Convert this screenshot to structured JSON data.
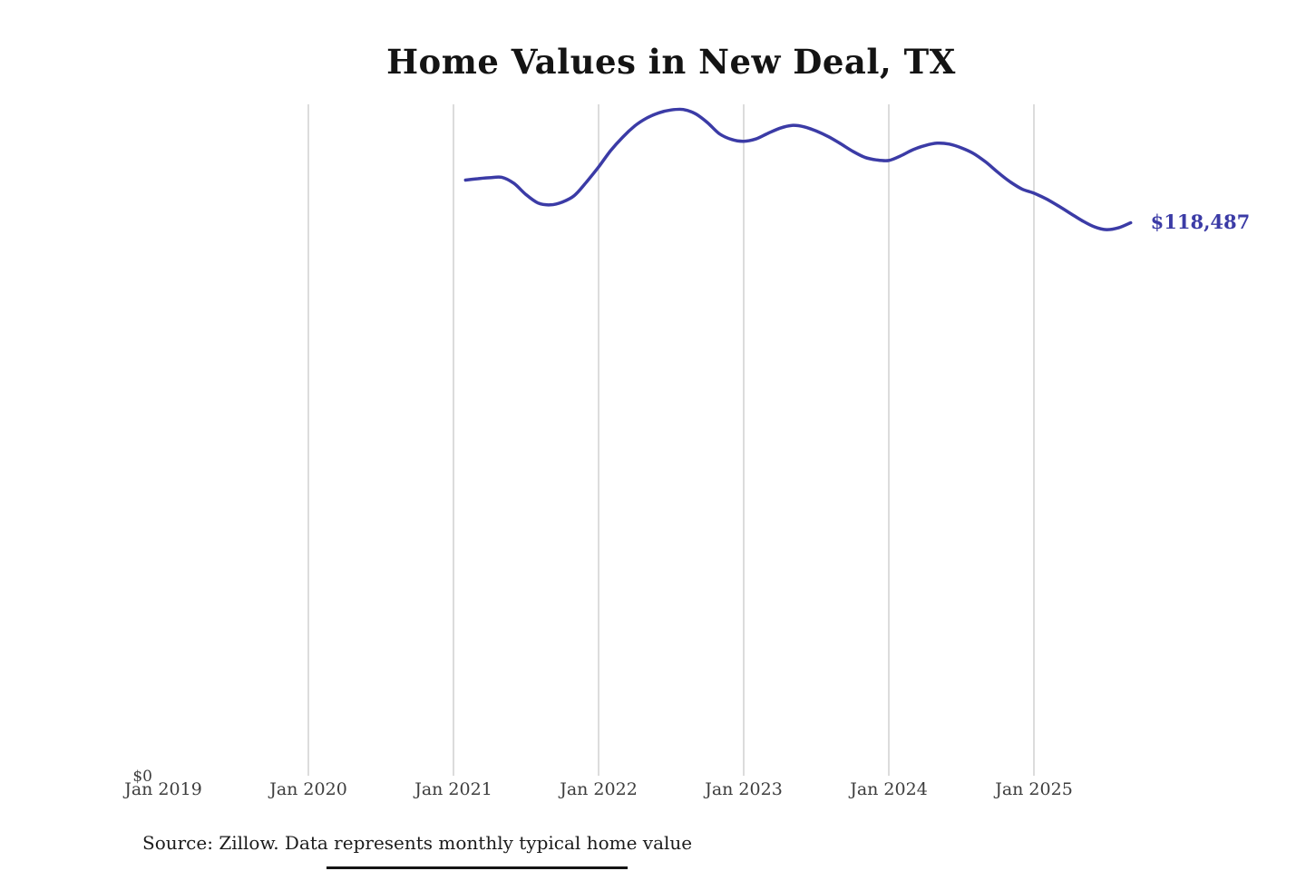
{
  "title": "Home Values in New Deal, TX",
  "source_note": "Source: Zillow. Data represents monthly typical home value",
  "colors": {
    "line": "#3b3ba6",
    "grid": "#c9c9c9",
    "title_text": "#141414",
    "tick_text": "#3d3d3d",
    "end_label_text": "#3b3ba6"
  },
  "chart_data": {
    "type": "line",
    "title": "Home Values in New Deal, TX",
    "xlabel": "",
    "ylabel": "",
    "ylim": [
      0,
      144000
    ],
    "grid": "vertical-only",
    "legend": "none",
    "y_zero_label": "$0",
    "last_value_label": "$118,487",
    "last_value": 118487,
    "x_ticks": [
      {
        "label": "Jan 2019",
        "gridline": false
      },
      {
        "label": "Jan 2020",
        "gridline": true
      },
      {
        "label": "Jan 2021",
        "gridline": true
      },
      {
        "label": "Jan 2022",
        "gridline": true
      },
      {
        "label": "Jan 2023",
        "gridline": true
      },
      {
        "label": "Jan 2024",
        "gridline": true
      },
      {
        "label": "Jan 2025",
        "gridline": true
      }
    ],
    "series": [
      {
        "name": "Monthly typical home value",
        "x": [
          "2021-02",
          "2021-03",
          "2021-04",
          "2021-05",
          "2021-06",
          "2021-07",
          "2021-08",
          "2021-09",
          "2021-10",
          "2021-11",
          "2021-12",
          "2022-01",
          "2022-02",
          "2022-03",
          "2022-04",
          "2022-05",
          "2022-06",
          "2022-07",
          "2022-08",
          "2022-09",
          "2022-10",
          "2022-11",
          "2022-12",
          "2023-01",
          "2023-02",
          "2023-03",
          "2023-04",
          "2023-05",
          "2023-06",
          "2023-07",
          "2023-08",
          "2023-09",
          "2023-10",
          "2023-11",
          "2023-12",
          "2024-01",
          "2024-02",
          "2024-03",
          "2024-04",
          "2024-05",
          "2024-06",
          "2024-07",
          "2024-08",
          "2024-09",
          "2024-10",
          "2024-11",
          "2024-12",
          "2025-01",
          "2025-02",
          "2025-03",
          "2025-04",
          "2025-05",
          "2025-06",
          "2025-07",
          "2025-08",
          "2025-09"
        ],
        "values": [
          127600,
          127900,
          128100,
          128200,
          126900,
          124500,
          122700,
          122300,
          122900,
          124300,
          127200,
          130400,
          133900,
          136800,
          139200,
          140900,
          142000,
          142600,
          142700,
          141800,
          139900,
          137500,
          136300,
          135900,
          136400,
          137600,
          138700,
          139300,
          139000,
          138100,
          136900,
          135400,
          133800,
          132500,
          131900,
          131800,
          132800,
          134100,
          135000,
          135500,
          135300,
          134500,
          133300,
          131500,
          129300,
          127300,
          125700,
          124800,
          123600,
          122100,
          120500,
          118900,
          117600,
          117000,
          117400,
          118487
        ]
      }
    ]
  }
}
